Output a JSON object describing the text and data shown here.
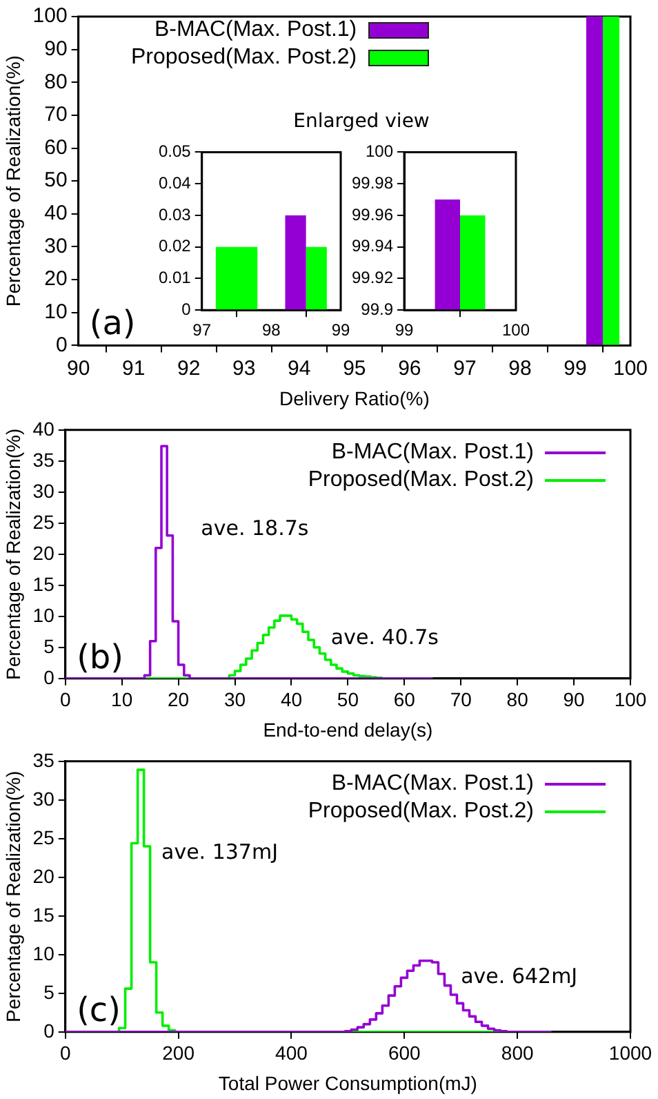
{
  "chart_data": [
    {
      "type": "bar",
      "xlabel": "Delivery Ratio(%)",
      "ylabel": "Percentage of Realization(%)",
      "x": [
        99.5
      ],
      "series": [
        {
          "name": "B-MAC(Max. Post.1)",
          "color": "#9400d3",
          "values": [
            100
          ]
        },
        {
          "name": "Proposed(Max. Post.2)",
          "color": "#00ff00",
          "values": [
            100
          ]
        }
      ],
      "xlim": [
        90,
        100
      ],
      "xticks": [
        90,
        91,
        92,
        93,
        94,
        95,
        96,
        97,
        98,
        99,
        100
      ],
      "ylim": [
        0,
        100
      ],
      "yticks": [
        0,
        10,
        20,
        30,
        40,
        50,
        60,
        70,
        80,
        90,
        100
      ],
      "legend": "top left",
      "annotations": [
        "(a)"
      ]
    },
    {
      "type": "bar",
      "title": "Enlarged view",
      "x": [
        97.5,
        98.5
      ],
      "series": [
        {
          "color": "#9400d3",
          "values": [
            null,
            0.03
          ]
        },
        {
          "color": "#00ff00",
          "values": [
            0.02,
            0.02
          ]
        }
      ],
      "xlim": [
        97,
        99
      ],
      "xticks": [
        97,
        98,
        99
      ],
      "ylim": [
        0,
        0.05
      ],
      "yticks": [
        0,
        0.01,
        0.02,
        0.03,
        0.04,
        0.05
      ]
    },
    {
      "type": "bar",
      "x": [
        99.5
      ],
      "series": [
        {
          "color": "#9400d3",
          "values": [
            99.97
          ]
        },
        {
          "color": "#00ff00",
          "values": [
            99.96
          ]
        }
      ],
      "xlim": [
        99,
        100
      ],
      "xticks": [
        99,
        100
      ],
      "ylim": [
        99.9,
        100
      ],
      "yticks": [
        99.9,
        99.92,
        99.94,
        99.96,
        99.98,
        100
      ]
    },
    {
      "type": "step",
      "xlabel": "End-to-end delay(s)",
      "ylabel": "Percentage of Realization(%)",
      "series": [
        {
          "name": "B-MAC(Max. Post.1)",
          "color": "#9400d3",
          "x": [
            0,
            14,
            15,
            16,
            17,
            18,
            19,
            20,
            21,
            22,
            65
          ],
          "values": [
            0,
            0.5,
            6,
            21,
            37.4,
            23,
            9.2,
            2.2,
            0.5,
            0,
            0
          ]
        },
        {
          "name": "Proposed(Max. Post.2)",
          "color": "#00ee00",
          "x": [
            0,
            29,
            30,
            31,
            32,
            33,
            34,
            35,
            36,
            37,
            38,
            39,
            40,
            41,
            42,
            43,
            44,
            45,
            46,
            47,
            48,
            49,
            50,
            51,
            52,
            53,
            54,
            55,
            56,
            65
          ],
          "values": [
            0,
            0.5,
            1.2,
            2.2,
            3.2,
            4.5,
            5.7,
            7,
            8.2,
            9.3,
            10.1,
            10.1,
            9.5,
            8.8,
            7.5,
            6.2,
            5,
            4,
            3,
            2.2,
            1.6,
            1.1,
            0.8,
            0.5,
            0.4,
            0.3,
            0.2,
            0.1,
            0,
            0
          ]
        }
      ],
      "xlim": [
        0,
        100
      ],
      "xticks": [
        0,
        10,
        20,
        30,
        40,
        50,
        60,
        70,
        80,
        90,
        100
      ],
      "ylim": [
        0,
        40
      ],
      "yticks": [
        0,
        5,
        10,
        15,
        20,
        25,
        30,
        35,
        40
      ],
      "legend": "top right",
      "annotations": [
        "(b)",
        "ave. 18.7s",
        "ave. 40.7s"
      ]
    },
    {
      "type": "step",
      "xlabel": "Total Power Consumption(mJ)",
      "ylabel": "Percentage of Realization(%)",
      "series": [
        {
          "name": "B-MAC(Max. Post.1)",
          "color": "#9400d3",
          "x": [
            0,
            495,
            506,
            517,
            528,
            539,
            550,
            561,
            572,
            583,
            594,
            605,
            616,
            627,
            638,
            649,
            660,
            671,
            682,
            693,
            704,
            715,
            726,
            737,
            748,
            759,
            770,
            781,
            860
          ],
          "values": [
            0,
            0.1,
            0.3,
            0.6,
            1,
            1.6,
            2.4,
            3.4,
            4.7,
            5.9,
            7,
            7.9,
            8.6,
            9.2,
            9.2,
            9,
            7.5,
            6,
            4.8,
            3.7,
            2.8,
            2,
            1.3,
            0.8,
            0.4,
            0.2,
            0.1,
            0,
            0
          ]
        },
        {
          "name": "Proposed(Max. Post.2)",
          "color": "#00ee00",
          "x": [
            0,
            95,
            106,
            117,
            128,
            139,
            150,
            161,
            172,
            183,
            194,
            860
          ],
          "values": [
            0,
            0.5,
            5.6,
            24.4,
            33.9,
            24,
            9,
            2.5,
            0.8,
            0.2,
            0,
            0
          ]
        }
      ],
      "xlim": [
        0,
        1000
      ],
      "xticks": [
        0,
        200,
        400,
        600,
        800,
        1000
      ],
      "ylim": [
        0,
        35
      ],
      "yticks": [
        0,
        5,
        10,
        15,
        20,
        25,
        30,
        35
      ],
      "legend": "top right",
      "annotations": [
        "(c)",
        "ave. 137mJ",
        "ave. 642mJ"
      ]
    }
  ]
}
